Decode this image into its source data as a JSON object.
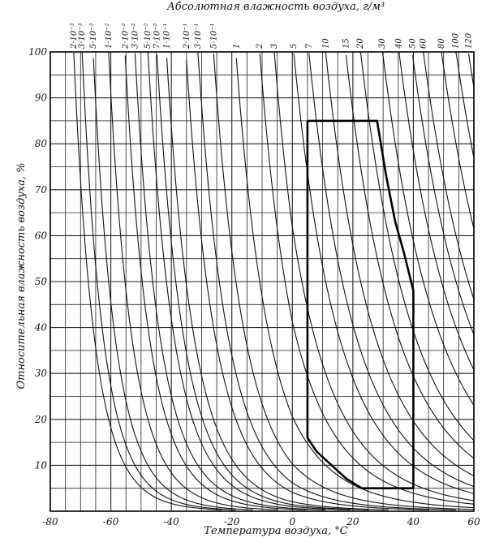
{
  "chart_data": {
    "type": "line",
    "title": "Абсолютная влажность воздуха, г/м³",
    "xlabel": "Температура воздуха, °С",
    "ylabel": "Относительная влажность воздуха, %",
    "xlim": [
      -80,
      60
    ],
    "ylim": [
      0,
      100
    ],
    "x_ticks": [
      "-80",
      "-60",
      "-40",
      "-20",
      "0",
      "20",
      "40",
      "60"
    ],
    "y_ticks": [
      "10",
      "20",
      "30",
      "40",
      "50",
      "60",
      "70",
      "80",
      "90",
      "100"
    ],
    "grid": true,
    "absolute_humidity_labels": [
      "2·10⁻³",
      "3·10⁻³",
      "5·10⁻³",
      "1·10⁻²",
      "2·10⁻²",
      "3·10⁻²",
      "5·10⁻²",
      "7·10⁻²",
      "1·10⁻¹",
      "2·10⁻¹",
      "3·10⁻¹",
      "5·10⁻¹",
      "1",
      "2",
      "3",
      "5",
      "7",
      "10",
      "15",
      "20",
      "30",
      "40",
      "50",
      "60",
      "80",
      "100",
      "120"
    ],
    "absolute_humidity_values": [
      0.002,
      0.003,
      0.005,
      0.01,
      0.02,
      0.03,
      0.05,
      0.07,
      0.1,
      0.2,
      0.3,
      0.5,
      1,
      2,
      3,
      5,
      7,
      10,
      15,
      20,
      30,
      40,
      50,
      60,
      80,
      100,
      120
    ],
    "region_outline": [
      [
        5,
        85
      ],
      [
        28,
        85
      ],
      [
        31,
        73
      ],
      [
        34,
        63
      ],
      [
        37,
        56
      ],
      [
        40,
        48
      ],
      [
        40,
        5
      ],
      [
        23,
        5
      ],
      [
        18,
        7
      ],
      [
        13,
        10
      ],
      [
        8,
        13
      ],
      [
        5,
        16
      ],
      [
        5,
        85
      ]
    ]
  }
}
